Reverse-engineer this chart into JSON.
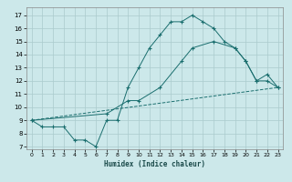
{
  "bg_color": "#cce8ea",
  "grid_color": "#aacbcd",
  "line_color": "#1a6e6e",
  "xlabel": "Humidex (Indice chaleur)",
  "xlim": [
    -0.5,
    23.5
  ],
  "ylim": [
    6.8,
    17.6
  ],
  "yticks": [
    7,
    8,
    9,
    10,
    11,
    12,
    13,
    14,
    15,
    16,
    17
  ],
  "xticks": [
    0,
    1,
    2,
    3,
    4,
    5,
    6,
    7,
    8,
    9,
    10,
    11,
    12,
    13,
    14,
    15,
    16,
    17,
    18,
    19,
    20,
    21,
    22,
    23
  ],
  "line1_x": [
    0,
    1,
    2,
    3,
    4,
    5,
    6,
    7,
    8,
    9,
    10,
    11,
    12,
    13,
    14,
    15,
    16,
    17,
    18,
    19,
    20,
    21,
    22,
    23
  ],
  "line1_y": [
    9.0,
    8.5,
    8.5,
    8.5,
    7.5,
    7.5,
    7.0,
    9.0,
    9.0,
    11.5,
    13.0,
    14.5,
    15.5,
    16.5,
    16.5,
    17.0,
    16.5,
    16.0,
    15.0,
    14.5,
    13.5,
    12.0,
    12.0,
    11.5
  ],
  "line2_x": [
    0,
    7,
    9,
    10,
    12,
    14,
    15,
    17,
    19,
    20,
    21,
    22,
    23
  ],
  "line2_y": [
    9.0,
    9.5,
    10.5,
    10.5,
    11.5,
    13.5,
    14.5,
    15.0,
    14.5,
    13.5,
    12.0,
    12.5,
    11.5
  ],
  "line3_x": [
    0,
    23
  ],
  "line3_y": [
    9.0,
    11.5
  ]
}
